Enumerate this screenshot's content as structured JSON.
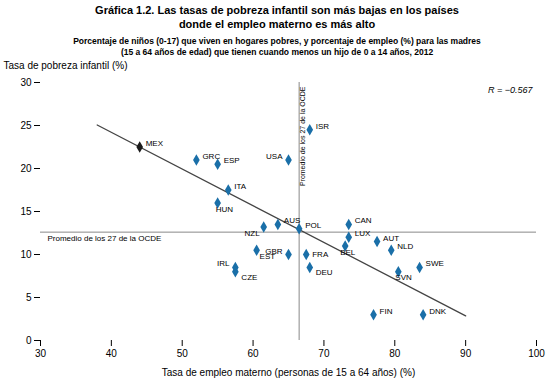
{
  "chart_data": {
    "type": "scatter",
    "title": "Gráfica 1.2. Las tasas de pobreza infantil son más bajas en los países\ndonde el empleo materno es más alto",
    "subtitle": "Porcentaje de niños (0-17) que viven en hogares pobres, y porcentaje de empleo (%) para las madres\n(15 a 64 años de edad) que tienen cuando menos un hijo de 0 a 14 años, 2012",
    "xlabel": "Tasa de empleo materno (personas de 15 a 64 años) (%)",
    "ylabel": "Tasa de pobreza infantil (%)",
    "xlim": [
      30,
      100
    ],
    "ylim": [
      0,
      30
    ],
    "xticks": [
      30,
      40,
      50,
      60,
      70,
      80,
      90,
      100
    ],
    "yticks": [
      0,
      5,
      10,
      15,
      20,
      25,
      30
    ],
    "grid": false,
    "marker": "diamond",
    "points": [
      {
        "name": "MEX",
        "x": 44.0,
        "y": 22.5
      },
      {
        "name": "ISR",
        "x": 68.0,
        "y": 24.5
      },
      {
        "name": "GRC",
        "x": 52.0,
        "y": 21.0
      },
      {
        "name": "ESP",
        "x": 55.0,
        "y": 20.5
      },
      {
        "name": "USA",
        "x": 65.0,
        "y": 21.0
      },
      {
        "name": "ITA",
        "x": 56.5,
        "y": 17.5
      },
      {
        "name": "HUN",
        "x": 55.0,
        "y": 16.0
      },
      {
        "name": "AUS",
        "x": 63.5,
        "y": 13.5
      },
      {
        "name": "NZL",
        "x": 61.5,
        "y": 13.2
      },
      {
        "name": "POL",
        "x": 66.5,
        "y": 13.0
      },
      {
        "name": "CAN",
        "x": 73.5,
        "y": 13.5
      },
      {
        "name": "LUX",
        "x": 73.5,
        "y": 12.0
      },
      {
        "name": "AUT",
        "x": 77.5,
        "y": 11.5
      },
      {
        "name": "BEL",
        "x": 73.0,
        "y": 11.0
      },
      {
        "name": "NLD",
        "x": 79.5,
        "y": 10.5
      },
      {
        "name": "EST",
        "x": 60.5,
        "y": 10.5
      },
      {
        "name": "GBR",
        "x": 65.0,
        "y": 10.0
      },
      {
        "name": "FRA",
        "x": 67.5,
        "y": 10.0
      },
      {
        "name": "DEU",
        "x": 68.0,
        "y": 8.5
      },
      {
        "name": "IRL",
        "x": 57.5,
        "y": 8.5
      },
      {
        "name": "CZE",
        "x": 57.5,
        "y": 8.0
      },
      {
        "name": "SVN",
        "x": 80.5,
        "y": 8.0
      },
      {
        "name": "SWE",
        "x": 83.5,
        "y": 8.5
      },
      {
        "name": "FIN",
        "x": 77.0,
        "y": 3.0
      },
      {
        "name": "DNK",
        "x": 84.0,
        "y": 3.0
      }
    ],
    "colors": [
      "#1a1a1a",
      "#1a6fa8",
      "#1a6fa8",
      "#1a6fa8",
      "#1a6fa8",
      "#1a6fa8",
      "#1a6fa8",
      "#1a6fa8",
      "#1a6fa8",
      "#1a6fa8",
      "#1a6fa8",
      "#1a6fa8",
      "#1a6fa8",
      "#1a6fa8",
      "#1a6fa8",
      "#1a6fa8",
      "#1a6fa8",
      "#1a6fa8",
      "#1a6fa8",
      "#1a6fa8",
      "#1a6fa8",
      "#1a6fa8",
      "#1a6fa8",
      "#1a6fa8",
      "#1a6fa8"
    ],
    "trend": {
      "type": "line",
      "x": [
        38,
        90
      ],
      "values": [
        25.0609756,
        2.8658537
      ]
    },
    "reference_lines": [
      {
        "axis": "x",
        "value": 66.5,
        "label": "Promedio de los 27 de la OCDE"
      },
      {
        "axis": "y",
        "value": 12.6,
        "label": "Promedio de los 27 de la OCDE"
      }
    ],
    "annotations": [
      "R = −0.567"
    ]
  }
}
